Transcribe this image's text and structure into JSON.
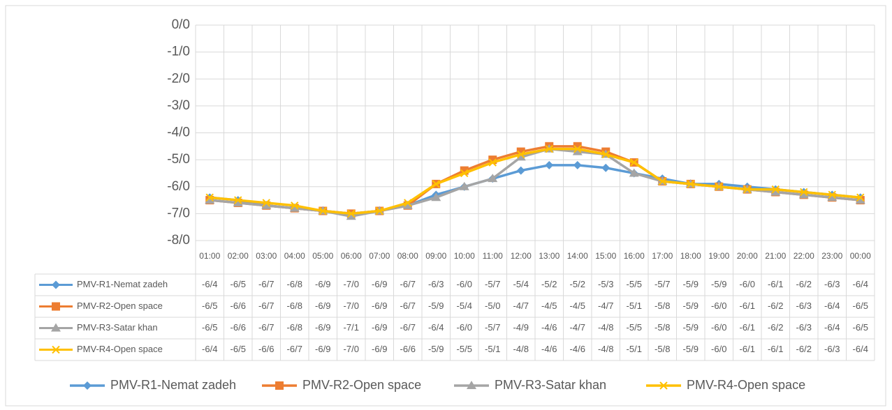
{
  "chart_data": {
    "type": "line",
    "categories": [
      "01:00",
      "02:00",
      "03:00",
      "04:00",
      "05:00",
      "06:00",
      "07:00",
      "08:00",
      "09:00",
      "10:00",
      "11:00",
      "12:00",
      "13:00",
      "14:00",
      "15:00",
      "16:00",
      "17:00",
      "18:00",
      "19:00",
      "20:00",
      "21:00",
      "22:00",
      "23:00",
      "00:00"
    ],
    "ylim": [
      -8,
      0
    ],
    "yticks": [
      {
        "value": 0,
        "label": "0/0"
      },
      {
        "value": -1,
        "label": "-1/0"
      },
      {
        "value": -2,
        "label": "-2/0"
      },
      {
        "value": -3,
        "label": "-3/0"
      },
      {
        "value": -4,
        "label": "-4/0"
      },
      {
        "value": -5,
        "label": "-5/0"
      },
      {
        "value": -6,
        "label": "-6/0"
      },
      {
        "value": -7,
        "label": "-7/0"
      },
      {
        "value": -8,
        "label": "-8/0"
      }
    ],
    "grid": true,
    "legend": "bottom",
    "series": [
      {
        "name": "PMV-R1-Nemat zadeh",
        "color": "#5b9bd5",
        "marker": "diamond",
        "values": [
          -6.4,
          -6.5,
          -6.7,
          -6.8,
          -6.9,
          -7.0,
          -6.9,
          -6.7,
          -6.3,
          -6.0,
          -5.7,
          -5.4,
          -5.2,
          -5.2,
          -5.3,
          -5.5,
          -5.7,
          -5.9,
          -5.9,
          -6.0,
          -6.1,
          -6.2,
          -6.3,
          -6.4
        ],
        "value_labels": [
          "-6/4",
          "-6/5",
          "-6/7",
          "-6/8",
          "-6/9",
          "-7/0",
          "-6/9",
          "-6/7",
          "-6/3",
          "-6/0",
          "-5/7",
          "-5/4",
          "-5/2",
          "-5/2",
          "-5/3",
          "-5/5",
          "-5/7",
          "-5/9",
          "-5/9",
          "-6/0",
          "-6/1",
          "-6/2",
          "-6/3",
          "-6/4"
        ]
      },
      {
        "name": "PMV-R2-Open space",
        "color": "#ed7d31",
        "marker": "square",
        "values": [
          -6.5,
          -6.6,
          -6.7,
          -6.8,
          -6.9,
          -7.0,
          -6.9,
          -6.7,
          -5.9,
          -5.4,
          -5.0,
          -4.7,
          -4.5,
          -4.5,
          -4.7,
          -5.1,
          -5.8,
          -5.9,
          -6.0,
          -6.1,
          -6.2,
          -6.3,
          -6.4,
          -6.5
        ],
        "value_labels": [
          "-6/5",
          "-6/6",
          "-6/7",
          "-6/8",
          "-6/9",
          "-7/0",
          "-6/9",
          "-6/7",
          "-5/9",
          "-5/4",
          "-5/0",
          "-4/7",
          "-4/5",
          "-4/5",
          "-4/7",
          "-5/1",
          "-5/8",
          "-5/9",
          "-6/0",
          "-6/1",
          "-6/2",
          "-6/3",
          "-6/4",
          "-6/5"
        ]
      },
      {
        "name": "PMV-R3-Satar khan",
        "color": "#a5a5a5",
        "marker": "triangle",
        "values": [
          -6.5,
          -6.6,
          -6.7,
          -6.8,
          -6.9,
          -7.1,
          -6.9,
          -6.7,
          -6.4,
          -6.0,
          -5.7,
          -4.9,
          -4.6,
          -4.7,
          -4.8,
          -5.5,
          -5.8,
          -5.9,
          -6.0,
          -6.1,
          -6.2,
          -6.3,
          -6.4,
          -6.5
        ],
        "value_labels": [
          "-6/5",
          "-6/6",
          "-6/7",
          "-6/8",
          "-6/9",
          "-7/1",
          "-6/9",
          "-6/7",
          "-6/4",
          "-6/0",
          "-5/7",
          "-4/9",
          "-4/6",
          "-4/7",
          "-4/8",
          "-5/5",
          "-5/8",
          "-5/9",
          "-6/0",
          "-6/1",
          "-6/2",
          "-6/3",
          "-6/4",
          "-6/5"
        ]
      },
      {
        "name": "PMV-R4-Open space",
        "color": "#ffc000",
        "marker": "x",
        "values": [
          -6.4,
          -6.5,
          -6.6,
          -6.7,
          -6.9,
          -7.0,
          -6.9,
          -6.6,
          -5.9,
          -5.5,
          -5.1,
          -4.8,
          -4.6,
          -4.6,
          -4.8,
          -5.1,
          -5.8,
          -5.9,
          -6.0,
          -6.1,
          -6.1,
          -6.2,
          -6.3,
          -6.4
        ],
        "value_labels": [
          "-6/4",
          "-6/5",
          "-6/6",
          "-6/7",
          "-6/9",
          "-7/0",
          "-6/9",
          "-6/6",
          "-5/9",
          "-5/5",
          "-5/1",
          "-4/8",
          "-4/6",
          "-4/6",
          "-4/8",
          "-5/1",
          "-5/8",
          "-5/9",
          "-6/0",
          "-6/1",
          "-6/1",
          "-6/2",
          "-6/3",
          "-6/4"
        ]
      }
    ]
  }
}
